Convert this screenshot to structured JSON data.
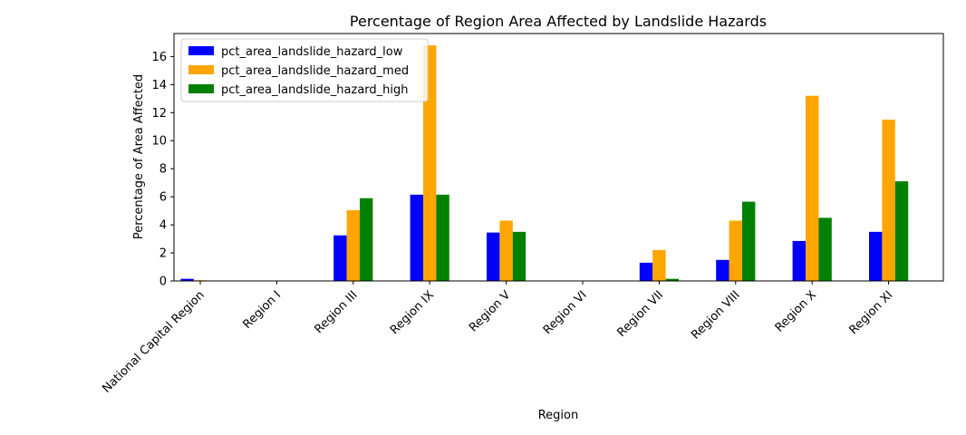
{
  "chart_data": {
    "type": "bar",
    "title": "Percentage of Region Area Affected by Landslide Hazards",
    "xlabel": "Region",
    "ylabel": "Percentage of Area Affected",
    "categories": [
      "National Capital Region",
      "Region I",
      "Region III",
      "Region IX",
      "Region V",
      "Region VI",
      "Region VII",
      "Region VIII",
      "Region X",
      "Region XI"
    ],
    "series": [
      {
        "name": "pct_area_landslide_hazard_low",
        "color": "#0000ff",
        "values": [
          0.15,
          0.0,
          3.25,
          6.15,
          3.45,
          0.0,
          1.3,
          1.5,
          2.85,
          3.5
        ]
      },
      {
        "name": "pct_area_landslide_hazard_med",
        "color": "#ffa500",
        "values": [
          0.05,
          0.0,
          5.05,
          16.8,
          4.3,
          0.0,
          2.2,
          4.3,
          13.2,
          11.5
        ]
      },
      {
        "name": "pct_area_landslide_hazard_high",
        "color": "#008000",
        "values": [
          0.0,
          0.0,
          5.9,
          6.15,
          3.5,
          0.0,
          0.15,
          5.65,
          4.5,
          7.1
        ]
      }
    ],
    "ylim": [
      0,
      17.64
    ],
    "yticks": [
      0,
      2,
      4,
      6,
      8,
      10,
      12,
      14,
      16
    ],
    "legend_position": "top-left",
    "grid": false
  }
}
